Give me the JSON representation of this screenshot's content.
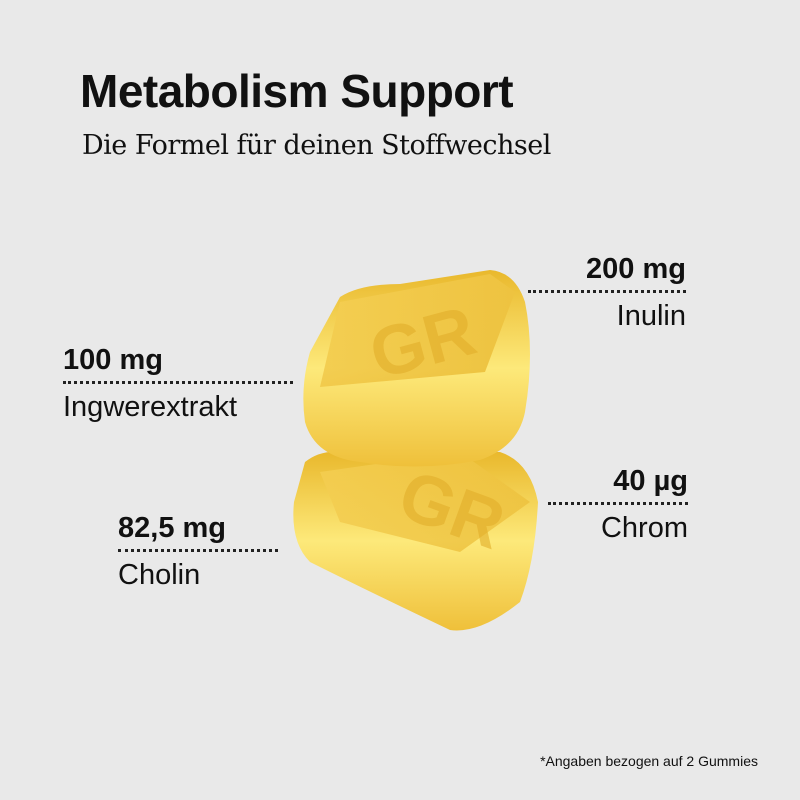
{
  "header": {
    "title": "Metabolism Support",
    "subtitle": "Die Formel für deinen Stoffwechsel"
  },
  "ingredients": [
    {
      "amount": "200 mg",
      "name": "Inulin"
    },
    {
      "amount": "100 mg",
      "name": "Ingwerextrakt"
    },
    {
      "amount": "40 µg",
      "name": "Chrom"
    },
    {
      "amount": "82,5 mg",
      "name": "Cholin"
    }
  ],
  "footnote": "*Angaben bezogen auf 2 Gummies",
  "colors": {
    "background": "#e9e9e9",
    "gummy": "#f5c93a",
    "gummy_light": "#fde97a"
  }
}
